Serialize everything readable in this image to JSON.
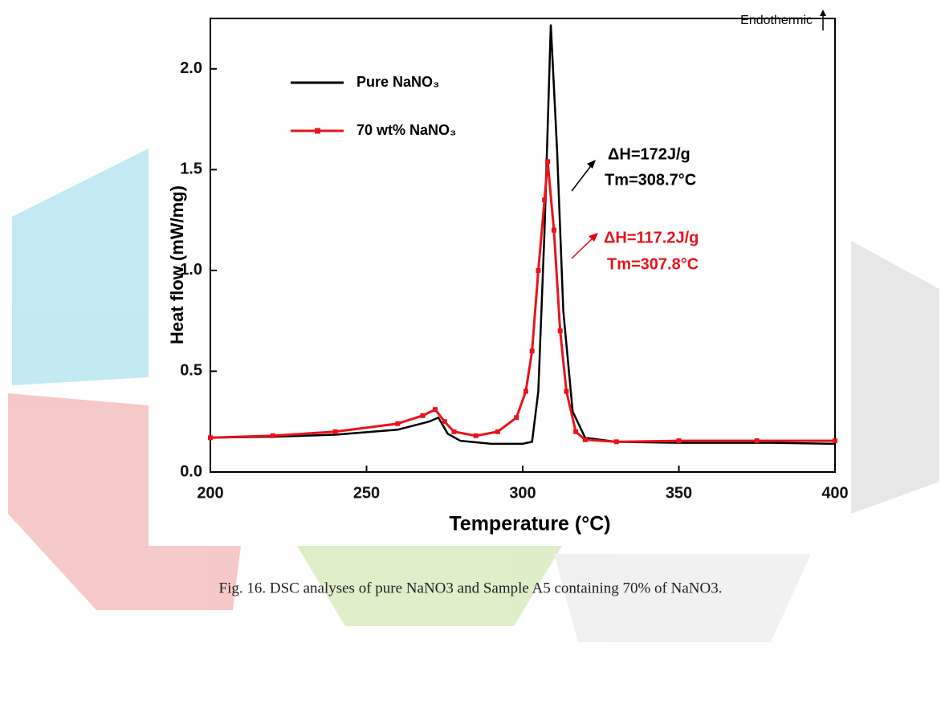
{
  "chart_data": {
    "type": "line",
    "x_label": "Temperature (°C)",
    "y_label": "Heat flow (mW/mg)",
    "xlim": [
      200,
      400
    ],
    "xticks": [
      200,
      250,
      300,
      350,
      400
    ],
    "ylim": [
      0,
      2.25
    ],
    "yticks": [
      {
        "value": 0,
        "label": "0.0"
      },
      0.5,
      {
        "value": 1,
        "label": "1.0"
      },
      1.5,
      {
        "value": 2,
        "label": "2.0"
      }
    ],
    "grid": false,
    "legend": "upper left",
    "series": [
      {
        "name": "Pure NaNO₃",
        "color": "#000000",
        "markers": false,
        "x": [
          200,
          220,
          240,
          260,
          270,
          273,
          276,
          280,
          290,
          300,
          303,
          305,
          307,
          309,
          311,
          313,
          316,
          320,
          330,
          350,
          380,
          400
        ],
        "values": [
          0.17,
          0.175,
          0.185,
          0.21,
          0.25,
          0.27,
          0.19,
          0.155,
          0.14,
          0.14,
          0.15,
          0.4,
          1.2,
          2.22,
          1.6,
          0.8,
          0.3,
          0.17,
          0.15,
          0.145,
          0.145,
          0.14
        ]
      },
      {
        "name": "70 wt% NaNO₃",
        "color": "#e8141b",
        "markers": true,
        "x": [
          200,
          220,
          240,
          260,
          268,
          272,
          275,
          278,
          285,
          292,
          298,
          301,
          303,
          305,
          307,
          308,
          310,
          312,
          314,
          317,
          320,
          330,
          350,
          375,
          400
        ],
        "values": [
          0.17,
          0.18,
          0.2,
          0.24,
          0.28,
          0.31,
          0.25,
          0.2,
          0.18,
          0.2,
          0.27,
          0.4,
          0.6,
          1.0,
          1.35,
          1.54,
          1.2,
          0.7,
          0.4,
          0.2,
          0.16,
          0.15,
          0.155,
          0.155,
          0.155
        ]
      }
    ],
    "annotations": [
      {
        "text": "Endothermic",
        "color": "#000000"
      },
      {
        "text": "ΔH=172J/g",
        "color": "#000000"
      },
      {
        "text": "Tm=308.7°C",
        "color": "#000000"
      },
      {
        "text": "ΔH=117.2J/g",
        "color": "#e8141b"
      },
      {
        "text": "Tm=307.8°C",
        "color": "#e8141b"
      }
    ]
  },
  "caption": "Fig. 16. DSC analyses of pure NaNO3 and Sample A5 containing 70% of NaNO3."
}
